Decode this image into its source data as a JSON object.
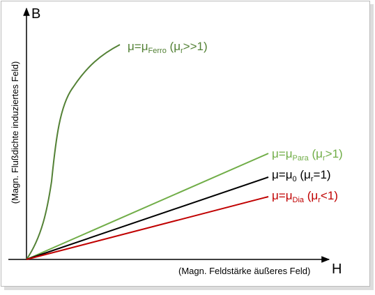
{
  "axes": {
    "y_symbol": "B",
    "y_label": "(Magn. Flußdichte induziertes Feld)",
    "x_symbol": "H",
    "x_label": "(Magn. Feldstärke äußeres Feld)"
  },
  "curves": [
    {
      "main": "μ=μ",
      "sub": "Ferro",
      "cond": " (μ",
      "cond_sub": "r",
      "cond_end": ">>1)"
    },
    {
      "main": "μ=μ",
      "sub": "Para",
      "cond": " (μ",
      "cond_sub": "r",
      "cond_end": ">1)"
    },
    {
      "main": "μ=μ",
      "sub": "0",
      "cond": " (μ",
      "cond_sub": "r",
      "cond_end": "=1)"
    },
    {
      "main": "μ=μ",
      "sub": "Dia",
      "cond": " (μ",
      "cond_sub": "r",
      "cond_end": "<1)"
    }
  ]
}
